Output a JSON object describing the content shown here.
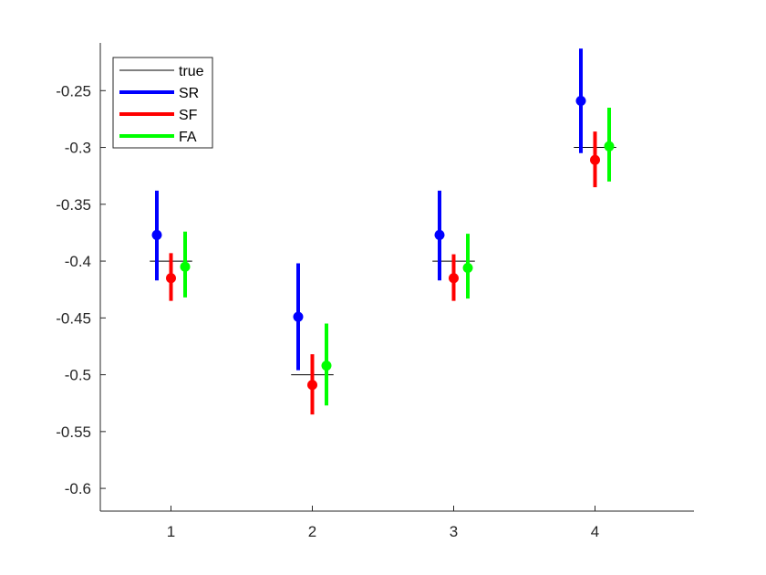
{
  "chart_data": {
    "type": "errorbar",
    "x_ticks": [
      1,
      2,
      3,
      4
    ],
    "xlim": [
      0.5,
      4.7
    ],
    "ylim": [
      -0.62,
      -0.208
    ],
    "y_ticks": [
      -0.25,
      -0.3,
      -0.35,
      -0.4,
      -0.45,
      -0.5,
      -0.55,
      -0.6
    ],
    "y_tick_labels": [
      "-0.25",
      "-0.3",
      "-0.35",
      "-0.4",
      "-0.45",
      "-0.5",
      "-0.55",
      "-0.6"
    ],
    "x_tick_labels": [
      "1",
      "2",
      "3",
      "4"
    ],
    "grid": false,
    "legend_position": "top-left",
    "true_values": {
      "name": "true",
      "color": "#000000",
      "points": [
        {
          "x": 1,
          "y": -0.4
        },
        {
          "x": 2,
          "y": -0.5
        },
        {
          "x": 3,
          "y": -0.4
        },
        {
          "x": 4,
          "y": -0.3
        }
      ]
    },
    "series": [
      {
        "name": "SR",
        "color": "#0000ff",
        "x": [
          0.9,
          1.9,
          2.9,
          3.9
        ],
        "y": [
          -0.377,
          -0.449,
          -0.377,
          -0.259
        ],
        "lower": [
          -0.417,
          -0.496,
          -0.417,
          -0.305
        ],
        "upper": [
          -0.338,
          -0.402,
          -0.338,
          -0.213
        ]
      },
      {
        "name": "SF",
        "color": "#ff0000",
        "x": [
          1.0,
          2.0,
          3.0,
          4.0
        ],
        "y": [
          -0.415,
          -0.509,
          -0.415,
          -0.311
        ],
        "lower": [
          -0.435,
          -0.535,
          -0.435,
          -0.335
        ],
        "upper": [
          -0.393,
          -0.482,
          -0.394,
          -0.286
        ]
      },
      {
        "name": "FA",
        "color": "#00ff00",
        "x": [
          1.1,
          2.1,
          3.1,
          4.1
        ],
        "y": [
          -0.405,
          -0.492,
          -0.406,
          -0.299
        ],
        "lower": [
          -0.432,
          -0.527,
          -0.433,
          -0.33
        ],
        "upper": [
          -0.374,
          -0.455,
          -0.376,
          -0.265
        ]
      }
    ]
  }
}
